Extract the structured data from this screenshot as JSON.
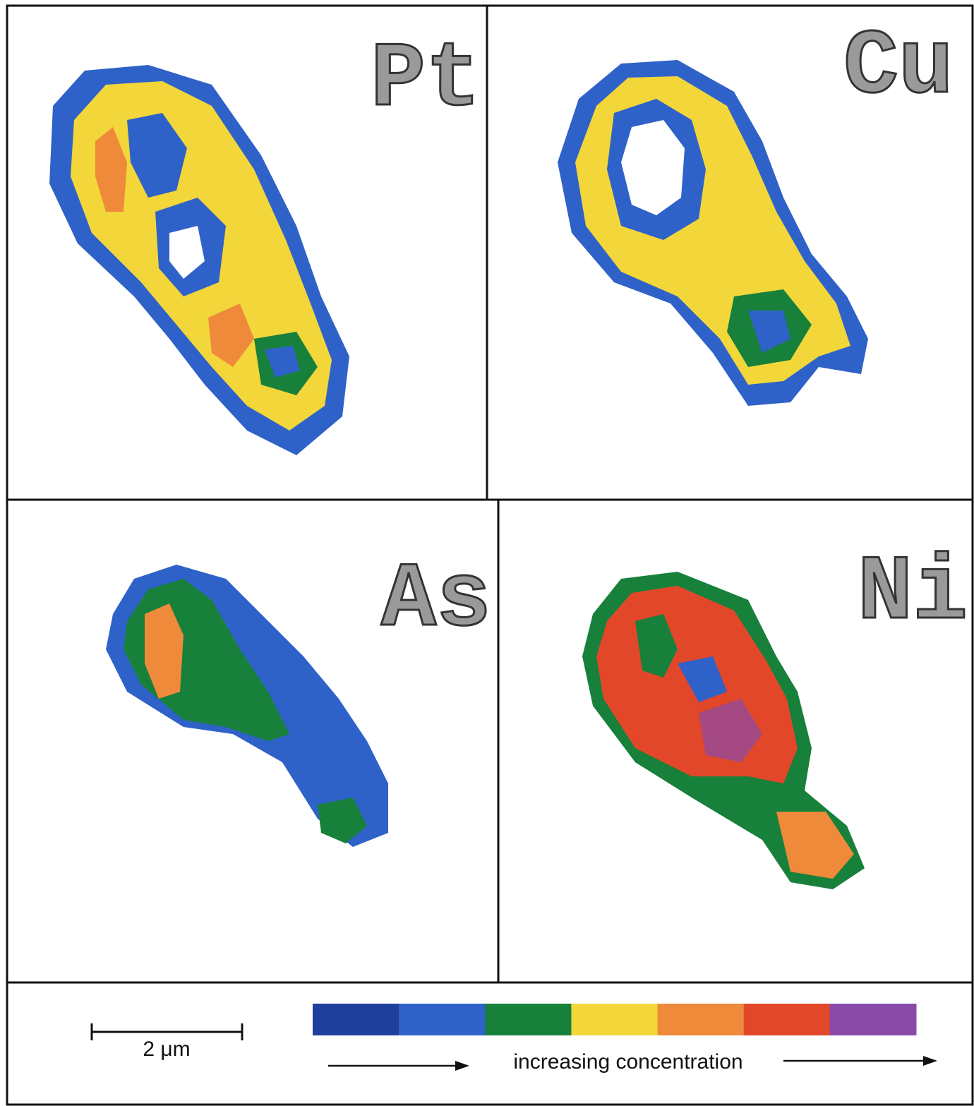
{
  "panels": [
    {
      "label": "Pt"
    },
    {
      "label": "Cu"
    },
    {
      "label": "As"
    },
    {
      "label": "Ni"
    }
  ],
  "scale_bar": {
    "label": "2 μm"
  },
  "colorbar": {
    "label": "increasing concentration",
    "colors": [
      "#1f3f9c",
      "#2f62c8",
      "#17803a",
      "#f2d63a",
      "#ef8a3a",
      "#e2472a",
      "#8a4aa8"
    ]
  }
}
